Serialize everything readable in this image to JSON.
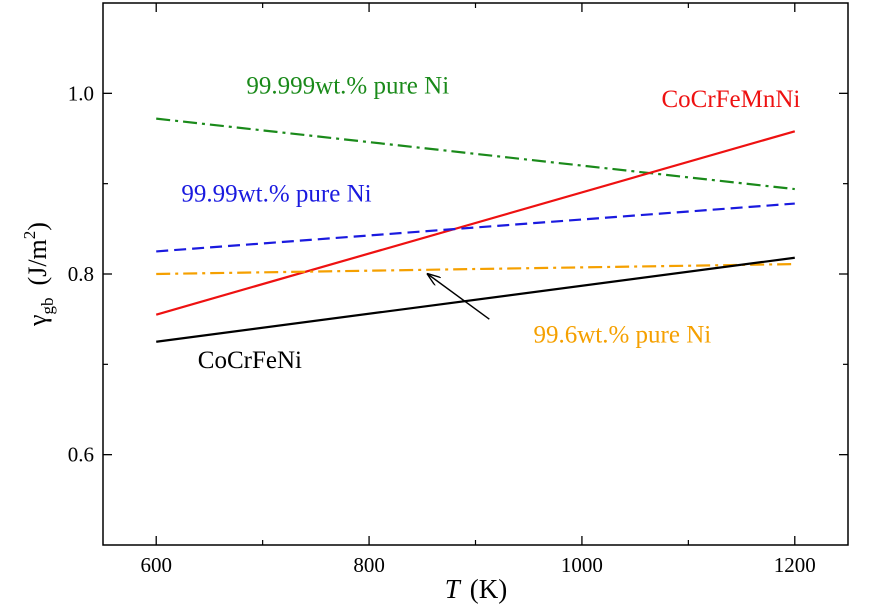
{
  "chart_data": {
    "type": "line",
    "title": "",
    "xlabel_italic": "T",
    "xlabel_unit": "(K)",
    "ylabel_symbol": "γ",
    "ylabel_subscript": "gb",
    "ylabel_unit_open": "(J/m",
    "ylabel_unit_sup": "2",
    "ylabel_unit_close": ")",
    "xlim": [
      550,
      1250
    ],
    "ylim": [
      0.5,
      1.1
    ],
    "x_ticks": [
      600,
      800,
      1000,
      1200
    ],
    "x_tick_labels": [
      "600",
      "800",
      "1000",
      "1200"
    ],
    "x_minor_ticks": [
      700,
      900,
      1100
    ],
    "y_ticks": [
      0.6,
      0.8,
      1.0
    ],
    "y_tick_labels": [
      "0.6",
      "0.8",
      "1.0"
    ],
    "y_minor_ticks": [
      0.7,
      0.9
    ],
    "series": [
      {
        "name": "99.999wt.% pure Ni",
        "label": "99.999wt.% pure Ni",
        "color": "#1a8a1a",
        "dash": "dashdot",
        "x": [
          600,
          1200
        ],
        "y": [
          0.972,
          0.894
        ],
        "label_pos": [
          780,
          1.0
        ]
      },
      {
        "name": "CoCrFeMnNi",
        "label": "CoCrFeMnNi",
        "color": "#ee1111",
        "dash": "solid",
        "x": [
          600,
          1200
        ],
        "y": [
          0.755,
          0.958
        ],
        "label_pos": [
          1140,
          0.985
        ]
      },
      {
        "name": "99.99wt.% pure Ni",
        "label": "99.99wt.% pure Ni",
        "color": "#1a1adf",
        "dash": "dashed",
        "x": [
          600,
          1200
        ],
        "y": [
          0.825,
          0.878
        ],
        "label_pos": [
          713,
          0.88
        ]
      },
      {
        "name": "99.6wt.% pure Ni",
        "label": "99.6wt.% pure Ni",
        "color": "#f5a000",
        "dash": "dashdot",
        "x": [
          600,
          1200
        ],
        "y": [
          0.8,
          0.811
        ],
        "label_pos": [
          1038,
          0.724
        ]
      },
      {
        "name": "CoCrFeNi",
        "label": "CoCrFeNi",
        "color": "#000000",
        "dash": "solid",
        "x": [
          600,
          1200
        ],
        "y": [
          0.725,
          0.818
        ],
        "label_pos": [
          688,
          0.696
        ]
      }
    ],
    "annotations": [
      {
        "target_series": "99.6wt.% pure Ni",
        "from": [
          913,
          0.75
        ],
        "to": [
          855,
          0.8
        ]
      }
    ]
  }
}
